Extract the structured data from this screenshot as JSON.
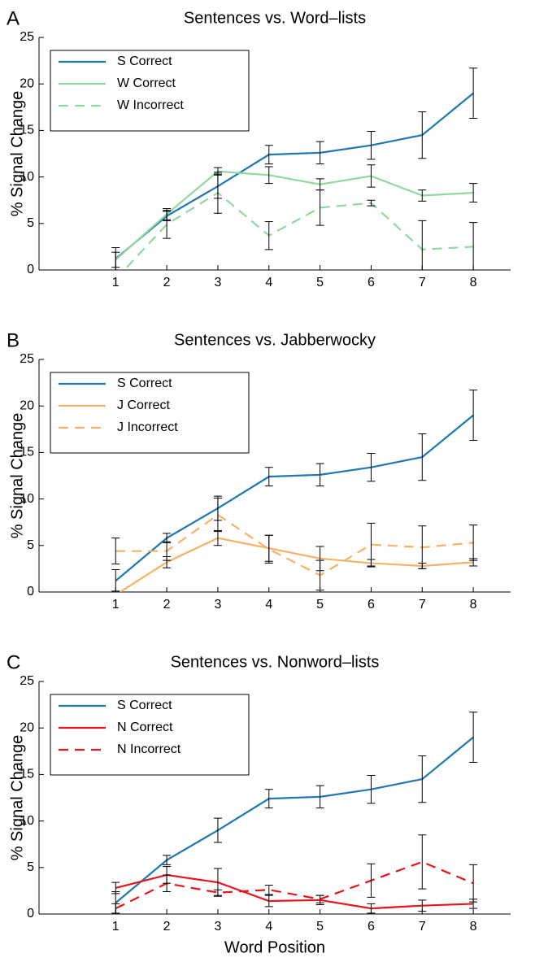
{
  "chart_data": [
    {
      "type": "line",
      "label": "A",
      "title": "Sentences vs. Word–lists",
      "ylabel": "% Signal Change",
      "x": [
        1,
        2,
        3,
        4,
        5,
        6,
        7,
        8
      ],
      "xlim": [
        -0.5,
        8.73
      ],
      "xticks": [
        1,
        2,
        3,
        4,
        5,
        6,
        7,
        8
      ],
      "ylim": [
        0,
        25
      ],
      "yticks": [
        0,
        5,
        10,
        15,
        20,
        25
      ],
      "legend": "upper left",
      "series": [
        {
          "name": "S Correct",
          "color": "#1f78b0",
          "style": "solid",
          "values": [
            1.2,
            5.8,
            9.0,
            12.4,
            12.6,
            13.4,
            14.5,
            19.0
          ],
          "errors": [
            1.2,
            0.5,
            1.3,
            1.0,
            1.2,
            1.5,
            2.5,
            2.7
          ]
        },
        {
          "name": "W Correct",
          "color": "#8fd8a0",
          "style": "solid",
          "values": [
            1.1,
            6.0,
            10.6,
            10.2,
            9.2,
            10.1,
            8.0,
            8.3
          ],
          "errors": [
            0.8,
            0.6,
            0.4,
            0.9,
            0.6,
            1.2,
            0.6,
            1.0
          ]
        },
        {
          "name": "W Incorrect",
          "color": "#8fd8a0",
          "style": "dashed",
          "values": [
            -1.0,
            4.9,
            8.3,
            3.7,
            6.7,
            7.2,
            2.2,
            2.5
          ],
          "errors": [
            0.7,
            1.5,
            2.2,
            1.5,
            1.9,
            0.3,
            3.1,
            2.6
          ]
        }
      ]
    },
    {
      "type": "line",
      "label": "B",
      "title": "Sentences vs. Jabberwocky",
      "ylabel": "% Signal Change",
      "x": [
        1,
        2,
        3,
        4,
        5,
        6,
        7,
        8
      ],
      "xlim": [
        -0.5,
        8.73
      ],
      "xticks": [
        1,
        2,
        3,
        4,
        5,
        6,
        7,
        8
      ],
      "ylim": [
        0,
        25
      ],
      "yticks": [
        0,
        5,
        10,
        15,
        20,
        25
      ],
      "legend": "upper left",
      "series": [
        {
          "name": "S Correct",
          "color": "#1f78b0",
          "style": "solid",
          "values": [
            1.2,
            5.8,
            9.0,
            12.4,
            12.6,
            13.4,
            14.5,
            19.0
          ],
          "errors": [
            1.2,
            0.5,
            1.3,
            1.0,
            1.2,
            1.5,
            2.5,
            2.7
          ]
        },
        {
          "name": "J Correct",
          "color": "#f7b26a",
          "style": "solid",
          "values": [
            -0.3,
            3.2,
            5.8,
            4.7,
            3.6,
            3.1,
            2.8,
            3.2
          ],
          "errors": [
            0.4,
            0.6,
            0.8,
            1.4,
            1.3,
            0.4,
            0.3,
            0.4
          ]
        },
        {
          "name": "J Incorrect",
          "color": "#f7b26a",
          "style": "dashed",
          "values": [
            4.4,
            4.4,
            8.3,
            4.6,
            1.8,
            5.1,
            4.8,
            5.3
          ],
          "errors": [
            1.4,
            1.0,
            1.8,
            1.5,
            1.6,
            2.3,
            2.3,
            1.9
          ]
        }
      ]
    },
    {
      "type": "line",
      "label": "C",
      "title": "Sentences vs. Nonword–lists",
      "ylabel": "% Signal Change",
      "xlabel": "Word Position",
      "x": [
        1,
        2,
        3,
        4,
        5,
        6,
        7,
        8
      ],
      "xlim": [
        -0.5,
        8.73
      ],
      "xticks": [
        1,
        2,
        3,
        4,
        5,
        6,
        7,
        8
      ],
      "ylim": [
        0,
        25
      ],
      "yticks": [
        0,
        5,
        10,
        15,
        20,
        25
      ],
      "legend": "upper left",
      "series": [
        {
          "name": "S Correct",
          "color": "#1f78b0",
          "style": "solid",
          "values": [
            1.2,
            5.8,
            9.0,
            12.4,
            12.6,
            13.4,
            14.5,
            19.0
          ],
          "errors": [
            1.2,
            0.5,
            1.3,
            1.0,
            1.2,
            1.5,
            2.5,
            2.7
          ]
        },
        {
          "name": "N Correct",
          "color": "#e8141c",
          "style": "solid",
          "values": [
            2.8,
            4.2,
            3.4,
            1.4,
            1.5,
            0.6,
            0.9,
            1.1
          ],
          "errors": [
            0.6,
            0.9,
            1.5,
            0.6,
            0.5,
            0.5,
            0.6,
            0.5
          ]
        },
        {
          "name": "N Incorrect",
          "color": "#e8141c",
          "style": "dashed",
          "values": [
            0.6,
            3.3,
            2.3,
            2.6,
            1.6,
            3.6,
            5.6,
            3.3
          ],
          "errors": [
            0.5,
            0.9,
            0.3,
            0.5,
            0.4,
            1.8,
            2.9,
            2.0
          ]
        }
      ]
    }
  ]
}
